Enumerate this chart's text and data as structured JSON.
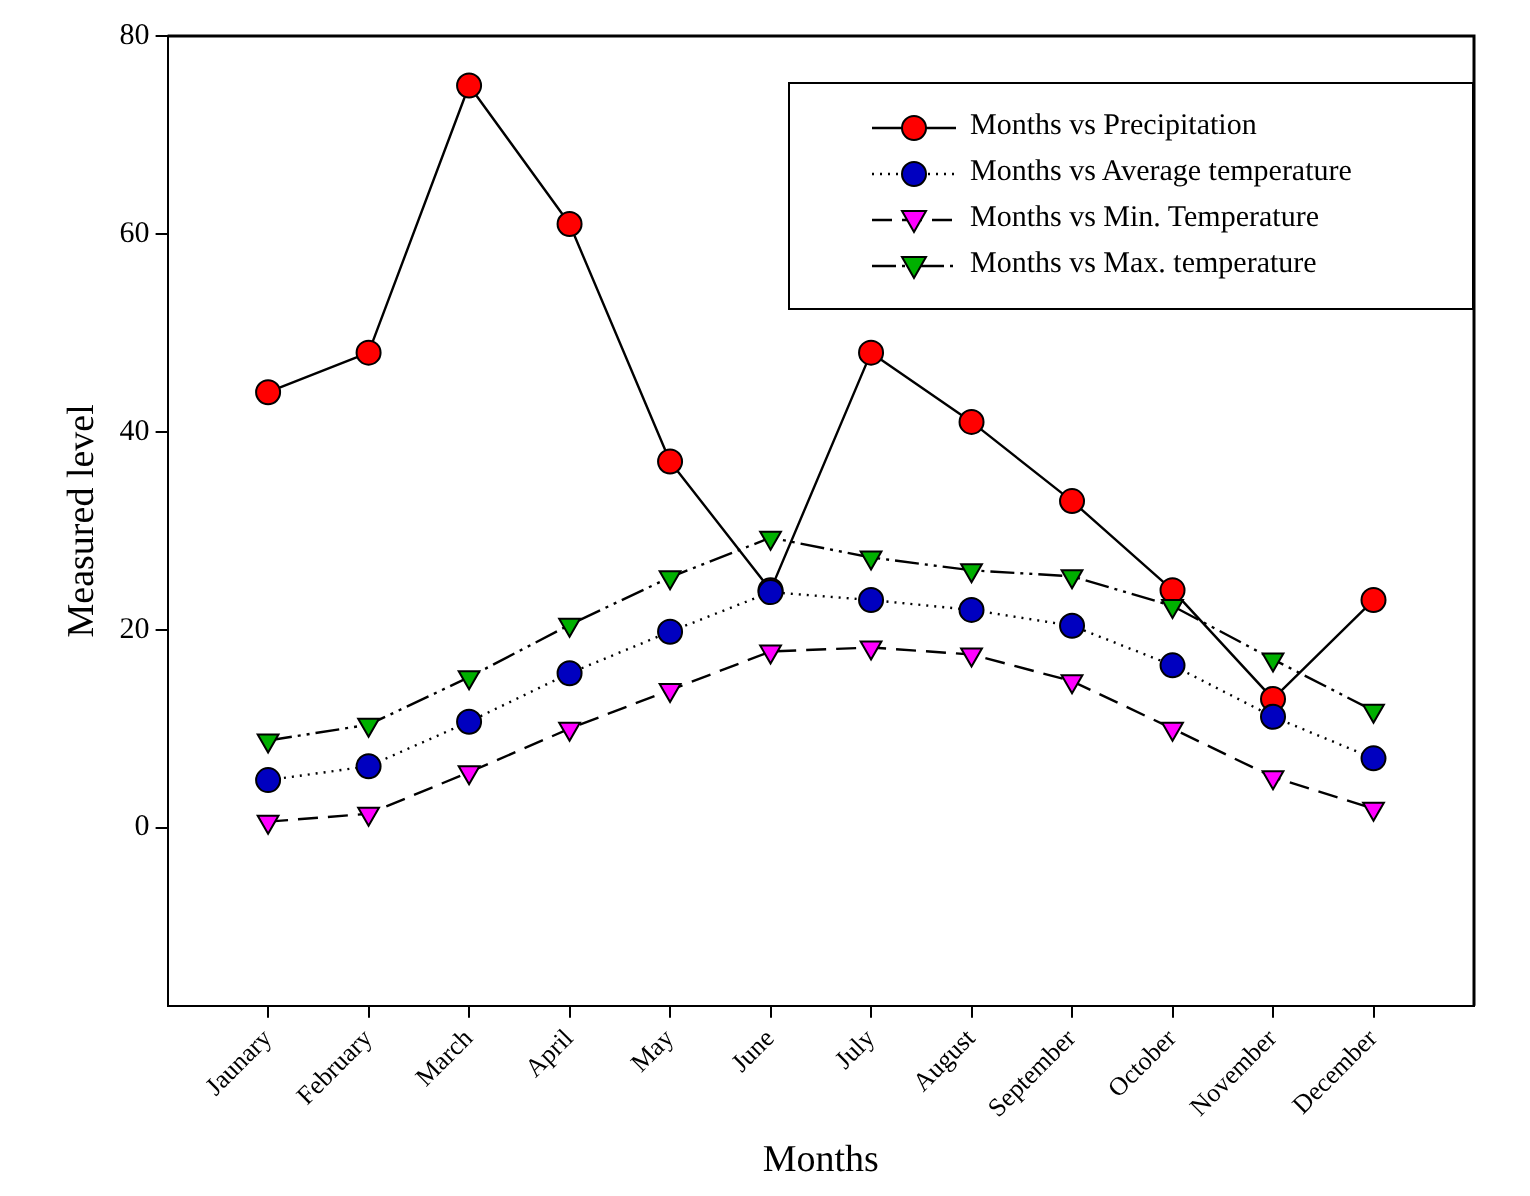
{
  "chart_data": {
    "type": "line",
    "xlabel": "Months",
    "ylabel": "Measured level",
    "categories": [
      "Jaunary",
      "February",
      "March",
      "April",
      "May",
      "June",
      "July",
      "August",
      "September",
      "October",
      "November",
      "December"
    ],
    "series": [
      {
        "name": "Months vs Precipitation",
        "color": "#ff0000",
        "marker": "circle",
        "line_style": "solid",
        "values": [
          44,
          48,
          75,
          61,
          37,
          24,
          48,
          41,
          33,
          24,
          13,
          23
        ]
      },
      {
        "name": "Months vs Average temperature",
        "color": "#0000c0",
        "marker": "circle",
        "line_style": "dotted",
        "values": [
          4.8,
          6.2,
          10.7,
          15.6,
          19.8,
          23.8,
          23,
          22,
          20.4,
          16.4,
          11.2,
          7
        ]
      },
      {
        "name": "Months vs Min. Temperature",
        "color": "#ff00ff",
        "marker": "triangle",
        "line_style": "dashed",
        "values": [
          0.6,
          1.4,
          5.6,
          10,
          13.9,
          17.8,
          18.2,
          17.5,
          14.8,
          10,
          5.1,
          1.9
        ]
      },
      {
        "name": "Months vs Max. temperature",
        "color": "#00b000",
        "marker": "triangle",
        "line_style": "dashdot",
        "values": [
          8.8,
          10.4,
          15.2,
          20.5,
          25.3,
          29.3,
          27.3,
          26,
          25.4,
          22.4,
          17,
          11.8
        ]
      }
    ],
    "ylim": [
      -18,
      80
    ],
    "yticks": [
      0,
      20,
      40,
      60,
      80
    ],
    "grid": false,
    "legend": "top right"
  }
}
